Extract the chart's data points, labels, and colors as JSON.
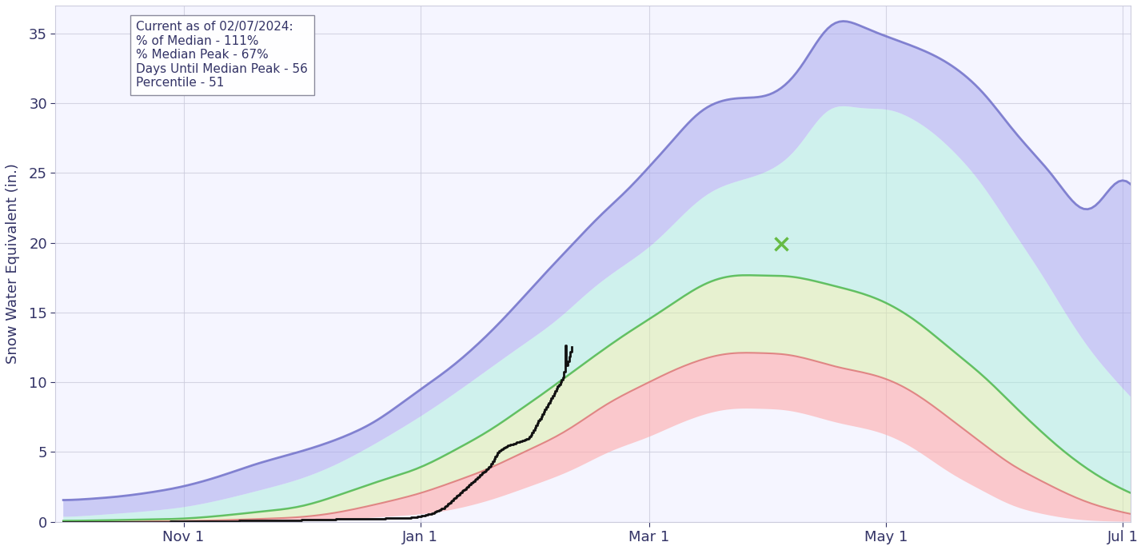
{
  "ylabel": "Snow Water Equivalent (in.)",
  "background_color": "#ffffff",
  "plot_bg_color": "#f5f5ff",
  "grid_color": "#ccccdd",
  "text_color": "#333366",
  "annotation_text": "Current as of 02/07/2024:\n% of Median - 111%\n% Median Peak - 67%\nDays Until Median Peak - 56\nPercentile - 51",
  "x_tick_labels": [
    "Nov 1",
    "Jan 1",
    "Mar 1",
    "May 1",
    "Jul 1"
  ],
  "ylim": [
    0,
    37
  ],
  "yticks": [
    0,
    5,
    10,
    15,
    20,
    25,
    30,
    35
  ],
  "blue_color": "#8888cc",
  "cyan_color": "#99ddee",
  "yellow_color": "#cceeaa",
  "red_color": "#eeaaaa",
  "median_color": "#66bb66",
  "current_color": "#111111"
}
